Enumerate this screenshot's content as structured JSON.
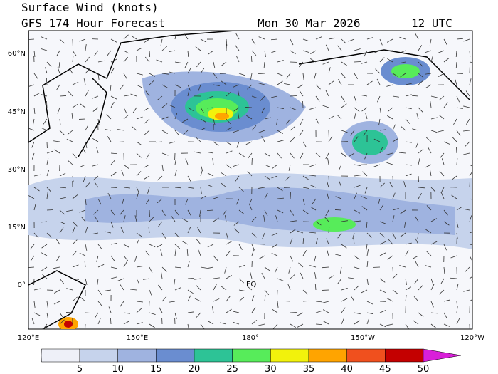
{
  "header": {
    "title": "Surface Wind (knots)",
    "subtitle": "GFS 174 Hour Forecast",
    "date": "Mon 30 Mar 2026",
    "time": "12 UTC"
  },
  "map": {
    "lat_labels": [
      "60°N",
      "45°N",
      "30°N",
      "15°N",
      "0°"
    ],
    "lon_labels": [
      "120°E",
      "150°E",
      "180°",
      "150°W",
      "120°W"
    ],
    "equator_label": "EQ"
  },
  "colorbar": {
    "ticks": [
      5,
      10,
      15,
      20,
      25,
      30,
      35,
      40,
      45,
      50
    ],
    "colors": [
      "#eef0f8",
      "#c6d3ec",
      "#9fb3e0",
      "#6a8dd0",
      "#2dc396",
      "#57ec5a",
      "#f2f20c",
      "#ffa400",
      "#f0501e",
      "#c40000",
      "#d81fd8"
    ]
  }
}
